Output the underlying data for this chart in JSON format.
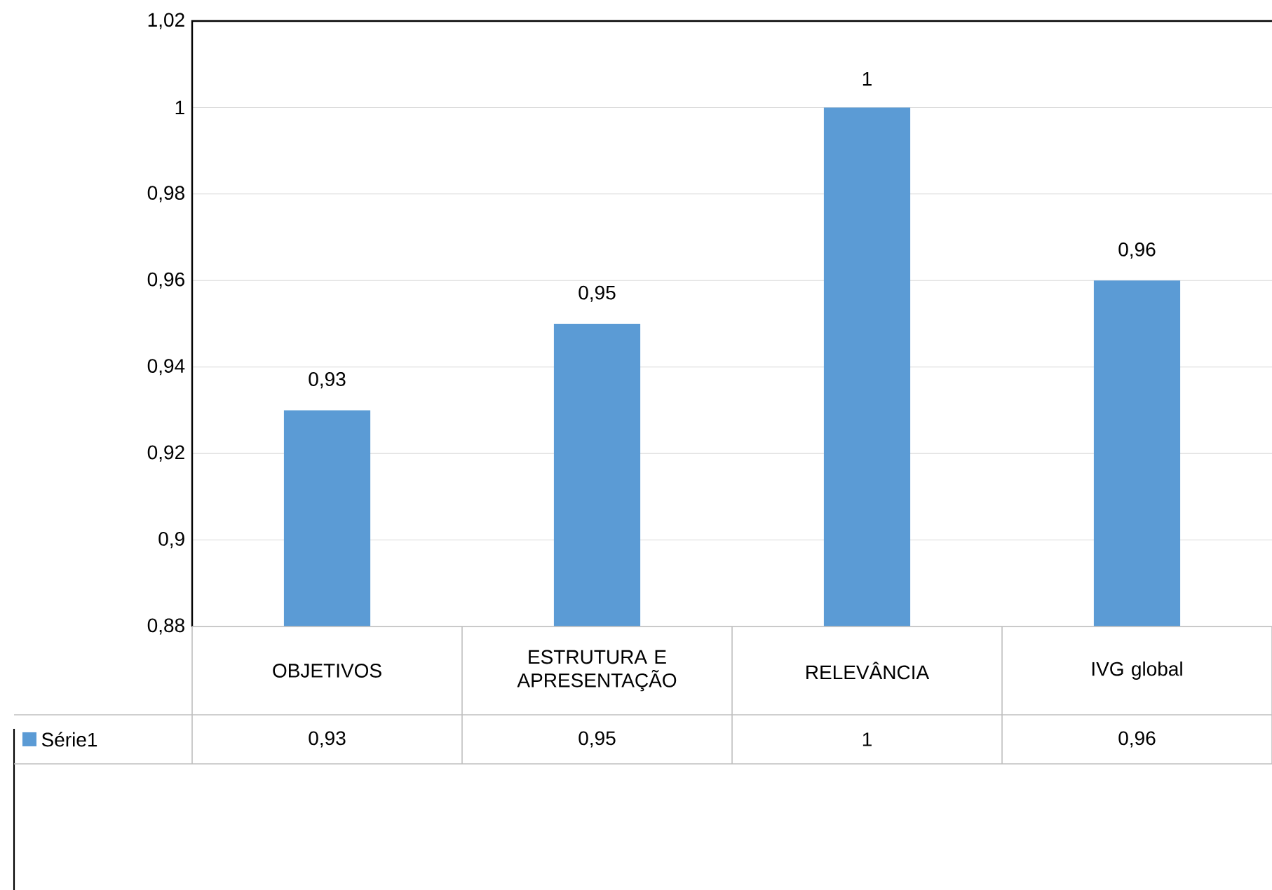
{
  "chart_data": {
    "type": "bar",
    "categories": [
      "OBJETIVOS",
      "ESTRUTURA E APRESENTAÇÃO",
      "RELEVÂNCIA",
      "IVG global"
    ],
    "series": [
      {
        "name": "Série1",
        "color": "#5b9bd5",
        "values": [
          0.93,
          0.95,
          1,
          0.96
        ],
        "value_labels": [
          "0,93",
          "0,95",
          "1",
          "0,96"
        ]
      }
    ],
    "ylim": [
      0.88,
      1.02
    ],
    "yticks": [
      {
        "value": 0.88,
        "label": "0,88"
      },
      {
        "value": 0.9,
        "label": "0,9"
      },
      {
        "value": 0.92,
        "label": "0,92"
      },
      {
        "value": 0.94,
        "label": "0,94"
      },
      {
        "value": 0.96,
        "label": "0,96"
      },
      {
        "value": 0.98,
        "label": "0,98"
      },
      {
        "value": 1,
        "label": "1"
      },
      {
        "value": 1.02,
        "label": "1,02"
      }
    ],
    "grid": "y",
    "legend": "bottom"
  }
}
